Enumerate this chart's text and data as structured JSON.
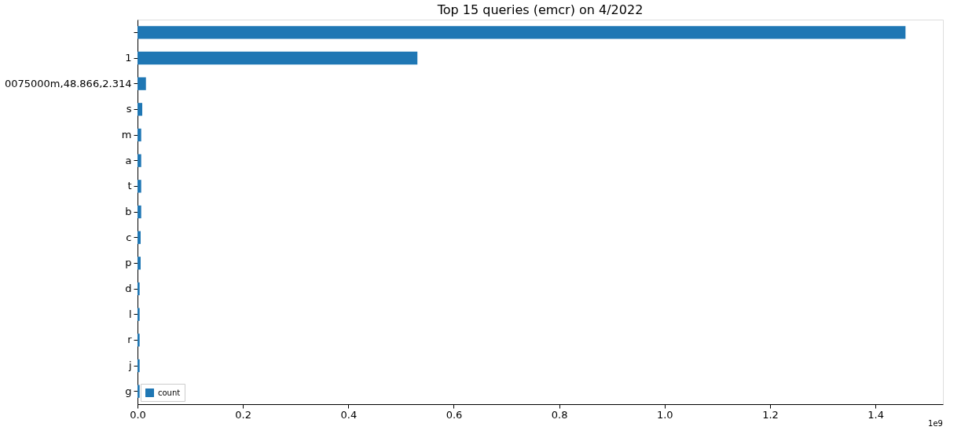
{
  "chart_data": {
    "type": "bar",
    "orientation": "horizontal",
    "title": "Top 15 queries (emcr) on 4/2022",
    "categories": [
      null,
      "1",
      "0075000m,48.866,2.314",
      "s",
      "m",
      "a",
      "t",
      "b",
      "c",
      "p",
      "d",
      "l",
      "r",
      "j",
      "g"
    ],
    "series": [
      {
        "name": "count",
        "color": "#1f77b4",
        "values": [
          1.457,
          0.531,
          0.016,
          0.009,
          0.007,
          0.007,
          0.007,
          0.007,
          0.006,
          0.006,
          0.004,
          0.004,
          0.004,
          0.004,
          0.004
        ]
      }
    ],
    "xlim": [
      0,
      1.528
    ],
    "xticks": [
      {
        "value": 0,
        "label": "0.0"
      },
      {
        "value": 0.2,
        "label": "0.2"
      },
      {
        "value": 0.4,
        "label": "0.4"
      },
      {
        "value": 0.6,
        "label": "0.6"
      },
      {
        "value": 0.8,
        "label": "0.8"
      },
      {
        "value": 1.0,
        "label": "1.0"
      },
      {
        "value": 1.2,
        "label": "1.2"
      },
      {
        "value": 1.4,
        "label": "1.4"
      }
    ],
    "annotations": [
      "1e9"
    ],
    "grid": false,
    "legend": "bottom left"
  }
}
